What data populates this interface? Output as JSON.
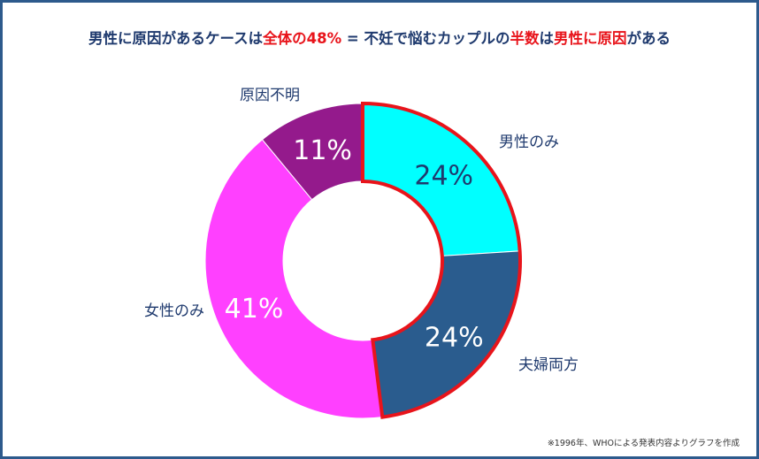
{
  "title": {
    "p1": "男性に原因があるケースは",
    "h1": "全体の48%",
    "p2": " = 不妊で悩むカップルの",
    "h2": "半数",
    "p3": "は",
    "h3": "男性に原因",
    "p4": "がある"
  },
  "chart_data": {
    "type": "pie",
    "donut": true,
    "categories": [
      "男性のみ",
      "夫婦両方",
      "女性のみ",
      "原因不明"
    ],
    "values": [
      24,
      24,
      41,
      11
    ],
    "value_labels": [
      "24%",
      "24%",
      "41%",
      "11%"
    ],
    "colors": [
      "#00ffff",
      "#2a5c8e",
      "#ff40ff",
      "#941a8c"
    ],
    "value_label_colors": [
      "#1f3a6e",
      "#ffffff",
      "#ffffff",
      "#ffffff"
    ],
    "highlight": {
      "segments": [
        "男性のみ",
        "夫婦両方"
      ],
      "outline_color": "#e8141b"
    }
  },
  "source_note": "※1996年、WHOによる発表内容よりグラフを作成",
  "colors": {
    "border": "#2d5a8c",
    "text": "#1f3a6e",
    "accent": "#e8141b"
  }
}
